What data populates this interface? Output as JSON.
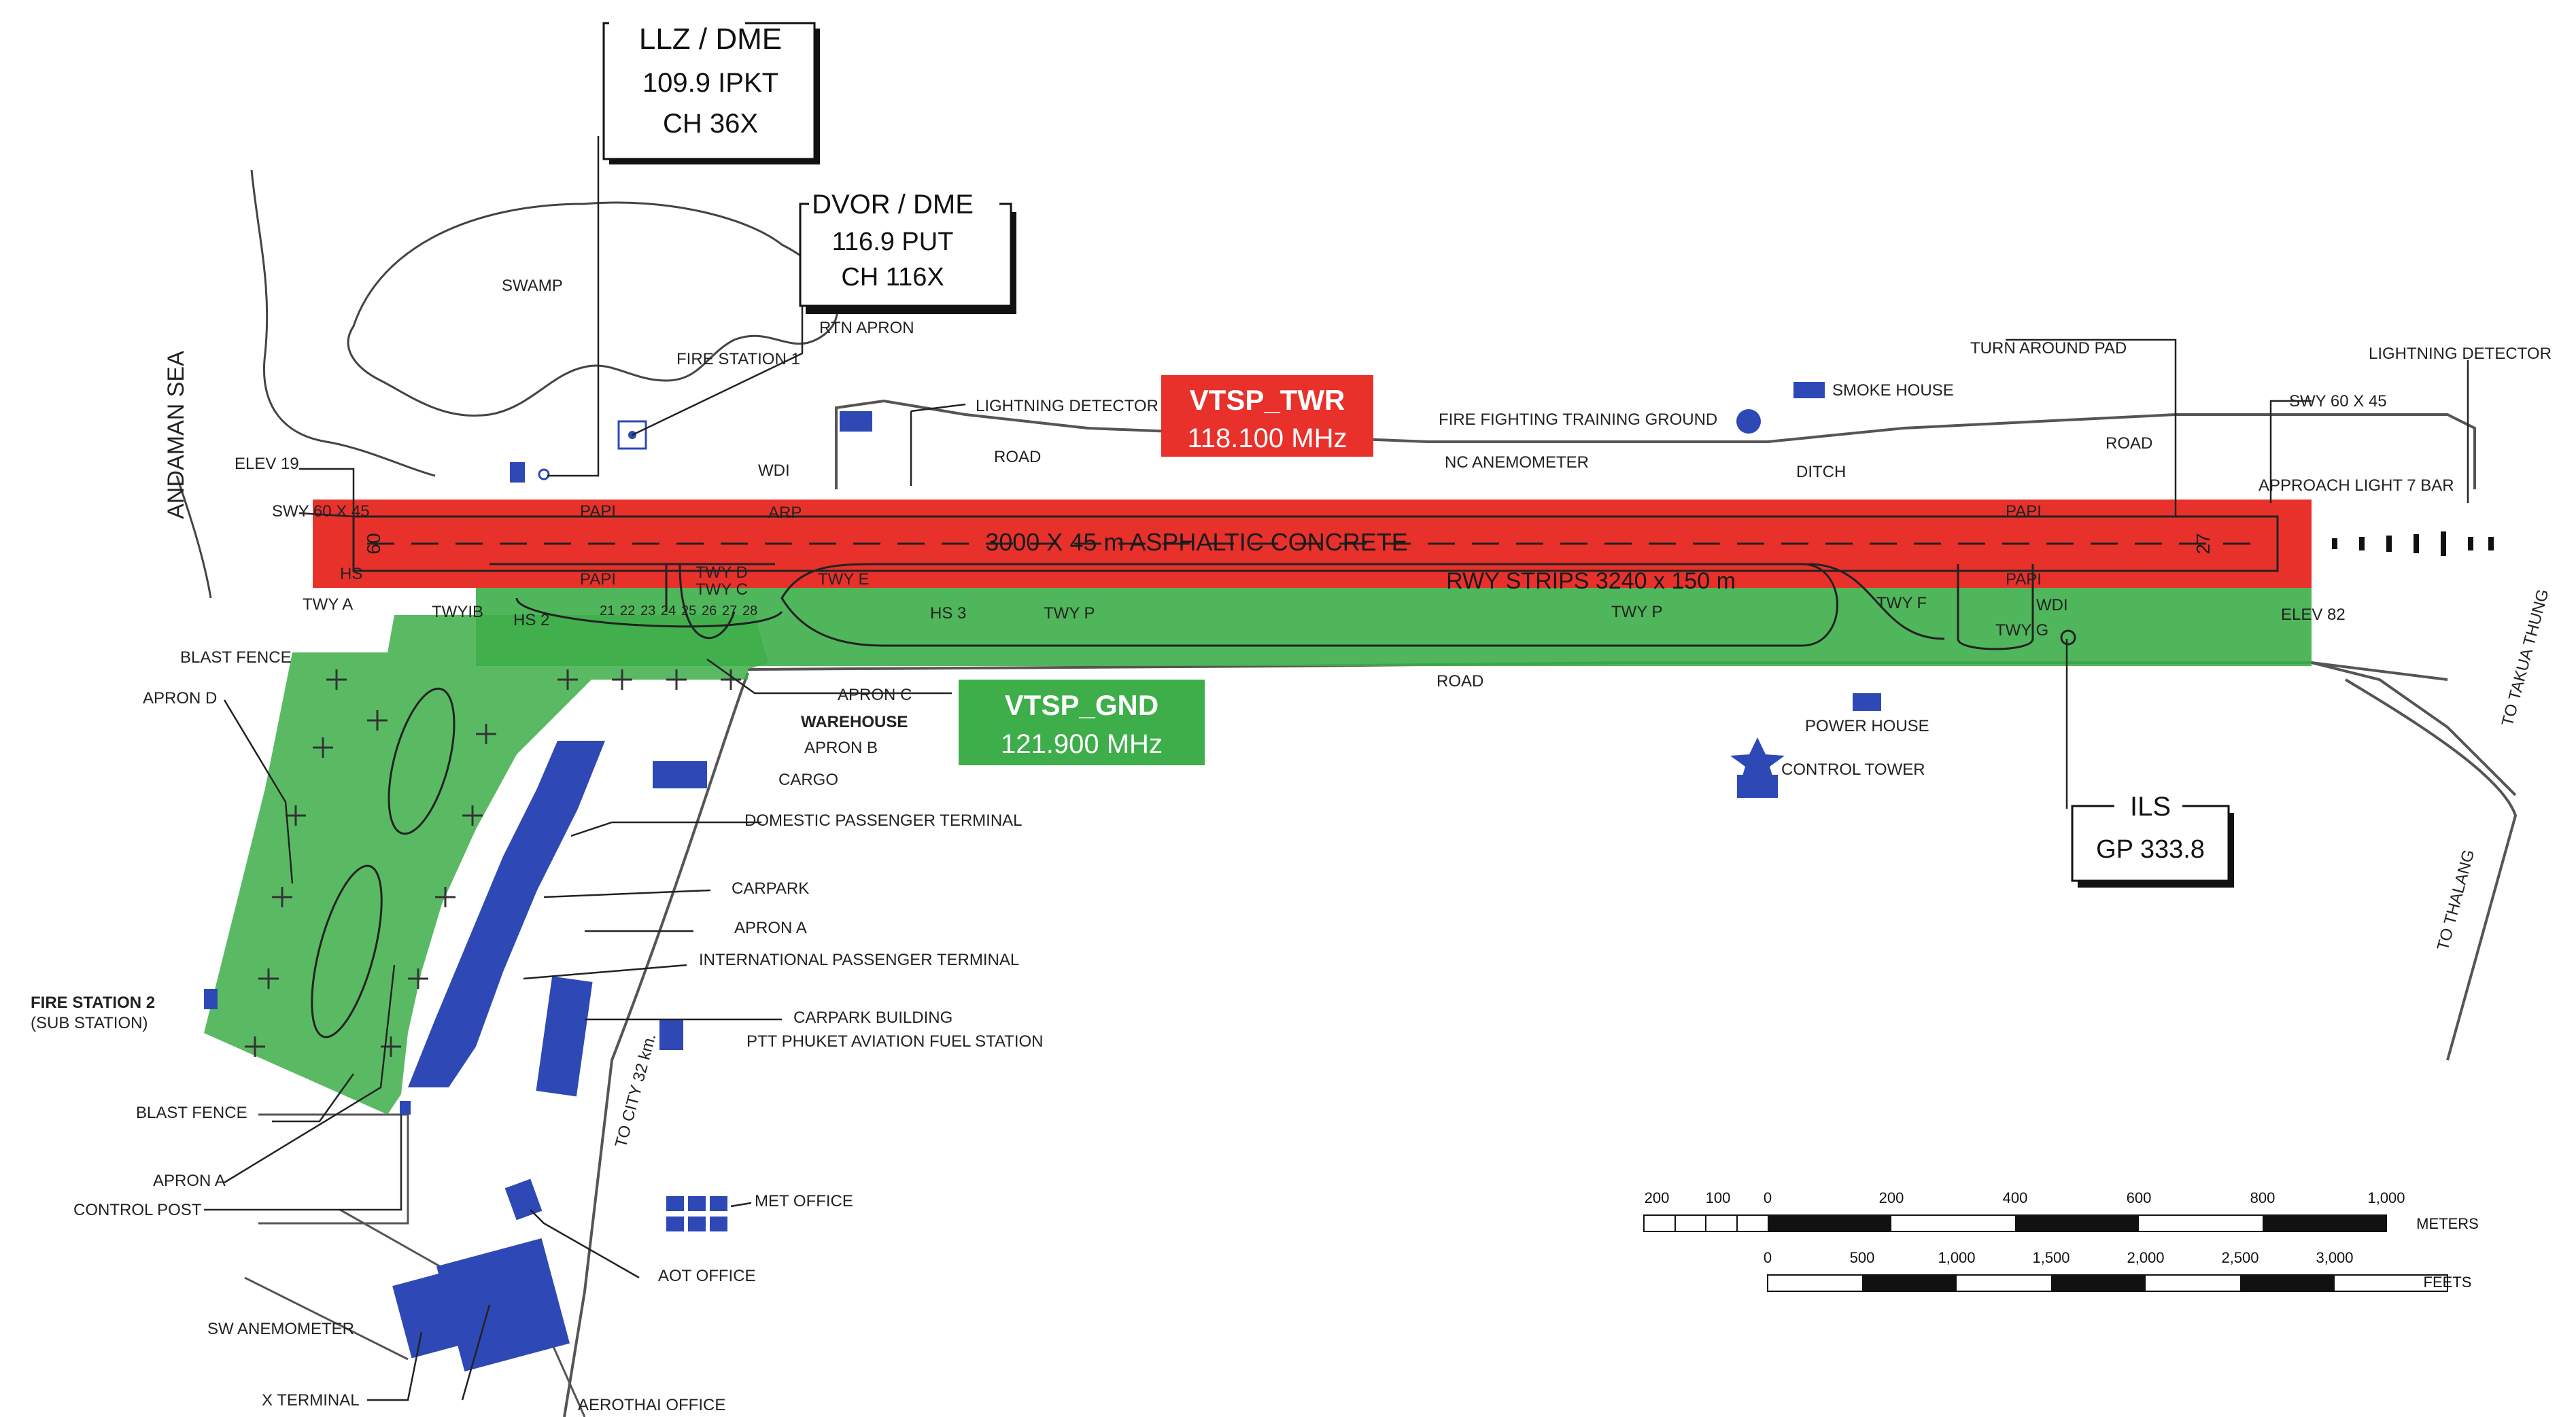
{
  "navaids": {
    "llz": {
      "title": "LLZ / DME",
      "line1": "109.9 IPKT",
      "line2": "CH 36X"
    },
    "dvor": {
      "title": "DVOR / DME",
      "line1": "116.9  PUT",
      "line2": "CH 116X"
    },
    "ils": {
      "title": "ILS",
      "line1": "GP 333.8"
    }
  },
  "frequencies": {
    "tower": {
      "title": "VTSP_TWR",
      "value": "118.100 MHz",
      "color": "#e8312b"
    },
    "ground": {
      "title": "VTSP_GND",
      "value": "121.900 MHz",
      "color": "#3dae49"
    }
  },
  "runway": {
    "surface": "3000 X 45 m  ASPHALTIC CONCRETE",
    "strips": "RWY STRIPS 3240 x 150 m",
    "end_west": "09",
    "end_east": "27"
  },
  "sea_label": "ANDAMAN SEA",
  "labels": {
    "swamp": "SWAMP",
    "elev19": "ELEV 19",
    "swy_west": "SWY 60 X 45",
    "hs": "HS",
    "twy_a": "TWY A",
    "twy_b": "TWYIB",
    "hs2": "HS 2",
    "blast_fence_top": "BLAST FENCE",
    "apron_d": "APRON D",
    "fire_station2": "FIRE STATION 2",
    "sub_station": "(SUB STATION)",
    "blast_fence_bottom": "BLAST FENCE",
    "apron_a_left": "APRON A",
    "control_post": "CONTROL POST",
    "sw_anemometer": "SW ANEMOMETER",
    "x_terminal": "X TERMINAL",
    "aerothai_office": "AEROTHAI OFFICE",
    "aot_office": "AOT OFFICE",
    "met_office": "MET OFFICE",
    "to_city": "TO CITY 32 km.",
    "carpark_building": "CARPARK BUILDING",
    "ptt_fuel": "PTT PHUKET AVIATION FUEL STATION",
    "intl_terminal": "INTERNATIONAL PASSENGER TERMINAL",
    "apron_a": "APRON A",
    "carpark": "CARPARK",
    "domestic_terminal": "DOMESTIC PASSENGER TERMINAL",
    "cargo": "CARGO",
    "apron_b": "APRON B",
    "warehouse": "WAREHOUSE",
    "apron_c": "APRON C",
    "hs3": "HS 3",
    "twy_p_left": "TWY P",
    "twy_p_right": "TWY P",
    "twy_d": "TWY D",
    "twy_c": "TWY C",
    "twy_e": "TWY E",
    "twy_f": "TWY F",
    "twy_g": "TWY G",
    "papi": "PAPI",
    "arp": "ARP",
    "wdi": "WDI",
    "fire_station1": "FIRE STATION 1",
    "rtn_apron": "RTN APRON",
    "lightning_detector_left": "LIGHTNING DETECTOR",
    "road": "ROAD",
    "nc_anemometer": "NC ANEMOMETER",
    "fire_training": "FIRE FIGHTING TRAINING GROUND",
    "smoke_house": "SMOKE HOUSE",
    "ditch": "DITCH",
    "turn_around_pad": "TURN AROUND PAD",
    "lightning_detector_right": "LIGHTNING DETECTOR",
    "swy_east": "SWY 60 X 45",
    "approach_light": "APPROACH LIGHT 7 BAR",
    "elev82": "ELEV 82",
    "power_house": "POWER HOUSE",
    "control_tower": "CONTROL TOWER",
    "to_takua_thung": "TO TAKUA THUNG",
    "to_thalang": "TO THALANG"
  },
  "stands": [
    "21",
    "22",
    "23",
    "24",
    "25",
    "26",
    "27",
    "28"
  ],
  "scale": {
    "meters_ticks": [
      "200",
      "100",
      "0",
      "200",
      "400",
      "600",
      "800",
      "1,000"
    ],
    "meters_unit": "METERS",
    "feet_ticks": [
      "0",
      "500",
      "1,000",
      "1,500",
      "2,000",
      "2,500",
      "3,000"
    ],
    "feet_unit": "FEETS"
  },
  "colors": {
    "runway_highlight": "#e8312b",
    "apron_highlight": "#3dae49",
    "building": "#2e49b5"
  }
}
